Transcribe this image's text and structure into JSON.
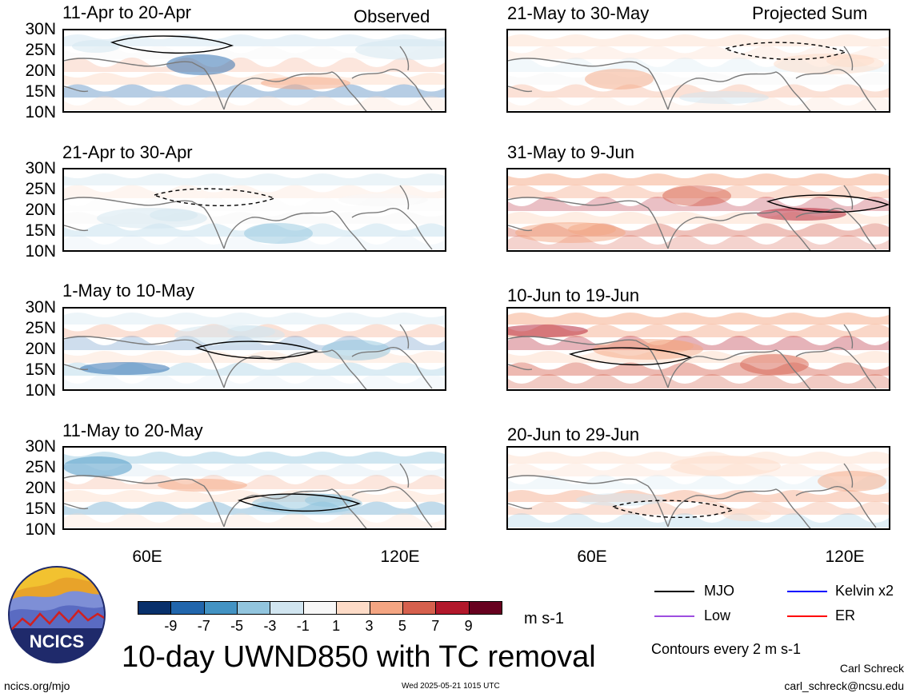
{
  "header": {
    "left_label": "Observed",
    "right_label": "Projected Sum"
  },
  "panels": [
    {
      "title": "11-Apr to 20-Apr",
      "col": 0,
      "row": 0
    },
    {
      "title": "21-Apr to 30-Apr",
      "col": 0,
      "row": 1
    },
    {
      "title": "1-May to 10-May",
      "col": 0,
      "row": 2
    },
    {
      "title": "11-May to 20-May",
      "col": 0,
      "row": 3
    },
    {
      "title": "21-May to 30-May",
      "col": 1,
      "row": 0
    },
    {
      "title": "31-May to 9-Jun",
      "col": 1,
      "row": 1
    },
    {
      "title": "10-Jun to 19-Jun",
      "col": 1,
      "row": 2
    },
    {
      "title": "20-Jun to 29-Jun",
      "col": 1,
      "row": 3
    }
  ],
  "lat_labels": [
    "30N",
    "25N",
    "20N",
    "15N",
    "10N"
  ],
  "lon_labels": [
    "60E",
    "120E"
  ],
  "colorbar": {
    "colors": [
      "#08306b",
      "#2166ac",
      "#4393c3",
      "#92c5de",
      "#d1e5f0",
      "#f7f7f7",
      "#fddbc7",
      "#f4a582",
      "#d6604d",
      "#b2182b",
      "#67001f"
    ],
    "labels": [
      "-9",
      "-7",
      "-5",
      "-3",
      "-1",
      "1",
      "3",
      "5",
      "7",
      "9"
    ],
    "units": "m s-1"
  },
  "legend": [
    {
      "label": "MJO",
      "color": "#000000"
    },
    {
      "label": "Kelvin x2",
      "color": "#0000ff"
    },
    {
      "label": "Low",
      "color": "#9d4de0"
    },
    {
      "label": "ER",
      "color": "#ff0000"
    }
  ],
  "contours_note": "Contours every 2 m s-1",
  "main_title": "10-day UWND850 with TC removal",
  "logo_text": "NCICS",
  "footer": {
    "url": "ncics.org/mjo",
    "timestamp": "Wed 2025-05-21 1015 UTC",
    "author": "Carl Schreck",
    "email": "carl_schreck@ncsu.edu"
  }
}
